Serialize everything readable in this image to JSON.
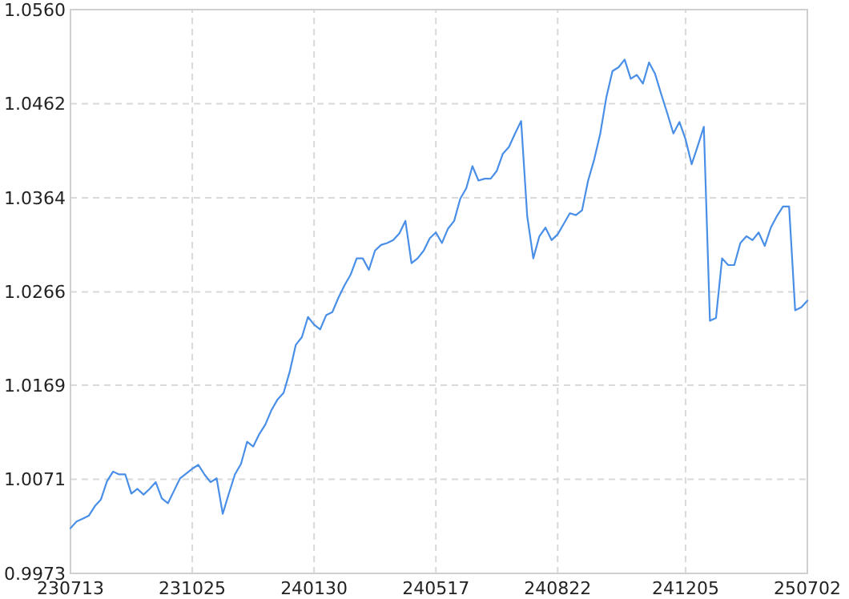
{
  "chart_data": {
    "type": "line",
    "categories": [
      "230713",
      null,
      null,
      null,
      null,
      null,
      null,
      null,
      null,
      null,
      null,
      null,
      null,
      null,
      null,
      null,
      null,
      null,
      null,
      null,
      "231025",
      null,
      null,
      null,
      null,
      null,
      null,
      null,
      null,
      null,
      null,
      null,
      null,
      null,
      null,
      null,
      null,
      null,
      null,
      null,
      "240130",
      null,
      null,
      null,
      null,
      null,
      null,
      null,
      null,
      null,
      null,
      null,
      null,
      null,
      null,
      null,
      null,
      null,
      null,
      null,
      "240517",
      null,
      null,
      null,
      null,
      null,
      null,
      null,
      null,
      null,
      null,
      null,
      null,
      null,
      null,
      null,
      null,
      null,
      null,
      null,
      "240822",
      null,
      null,
      null,
      null,
      null,
      null,
      null,
      null,
      null,
      null,
      null,
      null,
      null,
      null,
      null,
      null,
      null,
      null,
      null,
      null,
      "241205",
      null,
      null,
      null,
      null,
      null,
      null,
      null,
      null,
      null,
      null,
      null,
      null,
      null,
      null,
      null,
      null,
      null,
      null,
      null,
      "250702"
    ],
    "series": [
      {
        "color": "#4a8fe7",
        "values": [
          1.002,
          1.0027,
          1.003,
          1.0033,
          1.0043,
          1.005,
          1.0069,
          1.0079,
          1.0076,
          1.0076,
          1.0056,
          1.0061,
          1.0055,
          1.0061,
          1.0068,
          1.0051,
          1.0046,
          1.0059,
          1.0072,
          1.0077,
          1.0082,
          1.0086,
          1.0076,
          1.0068,
          1.0072,
          1.0035,
          1.0056,
          1.0076,
          1.0087,
          1.011,
          1.0105,
          1.0118,
          1.0128,
          1.0143,
          1.0154,
          1.0161,
          1.0183,
          1.0211,
          1.0219,
          1.024,
          1.0232,
          1.0227,
          1.0242,
          1.0245,
          1.026,
          1.0273,
          1.0284,
          1.0301,
          1.0301,
          1.0289,
          1.0309,
          1.0315,
          1.0317,
          1.032,
          1.0327,
          1.034,
          1.0296,
          1.0301,
          1.0309,
          1.0322,
          1.0328,
          1.0317,
          1.0332,
          1.034,
          1.0363,
          1.0374,
          1.0397,
          1.0382,
          1.0384,
          1.0384,
          1.0392,
          1.041,
          1.0417,
          1.0431,
          1.0444,
          1.0345,
          1.0301,
          1.0324,
          1.0333,
          1.032,
          1.0326,
          1.0337,
          1.0348,
          1.0346,
          1.0351,
          1.0382,
          1.0404,
          1.0431,
          1.0469,
          1.0496,
          1.05,
          1.0508,
          1.0488,
          1.0492,
          1.0483,
          1.0505,
          1.0493,
          1.0472,
          1.0452,
          1.0431,
          1.0443,
          1.0425,
          1.0399,
          1.0418,
          1.0438,
          1.0236,
          1.0239,
          1.0301,
          1.0294,
          1.0294,
          1.0317,
          1.0324,
          1.032,
          1.0328,
          1.0314,
          1.0333,
          1.0345,
          1.0355,
          1.0355,
          1.0247,
          1.025,
          1.0257
        ]
      }
    ],
    "ylim": [
      0.9973,
      1.056
    ],
    "yticks": [
      0.9973,
      1.0071,
      1.0169,
      1.0266,
      1.0364,
      1.0462,
      {
        "value": 1.056,
        "label": "1.0560"
      }
    ],
    "grid": true
  }
}
